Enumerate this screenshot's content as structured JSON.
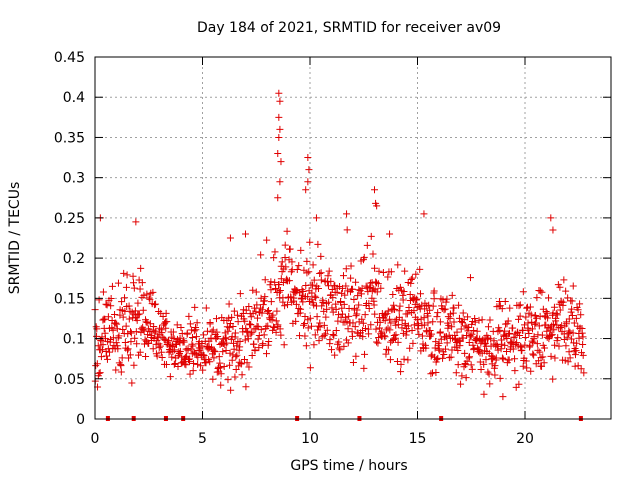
{
  "chart_data": {
    "type": "scatter",
    "title": "Day 184 of 2021, SRMTID for receiver av09",
    "xlabel": "GPS time / hours",
    "ylabel": "SRMTID / TECUs",
    "xlim": [
      0,
      24
    ],
    "ylim": [
      0,
      0.45
    ],
    "x_ticks": [
      0,
      5,
      10,
      15,
      20
    ],
    "x_tick_labels": [
      "0",
      "5",
      "10",
      "15",
      "20"
    ],
    "y_ticks": [
      0,
      0.05,
      0.1,
      0.15,
      0.2,
      0.25,
      0.3,
      0.35,
      0.4,
      0.45
    ],
    "y_tick_labels": [
      "0",
      "0.05",
      "0.1",
      "0.15",
      "0.2",
      "0.25",
      "0.3",
      "0.35",
      "0.4",
      "0.45"
    ],
    "grid": true,
    "marker": "+",
    "color": "#e00000",
    "zero_markers_x": [
      0.6,
      1.8,
      3.3,
      4.1,
      9.4,
      12.3,
      16.1,
      22.6
    ],
    "density_profile": [
      {
        "x": 0.0,
        "mean": 0.1,
        "spread": 0.035
      },
      {
        "x": 1.0,
        "mean": 0.115,
        "spread": 0.04
      },
      {
        "x": 2.5,
        "mean": 0.12,
        "spread": 0.04
      },
      {
        "x": 3.5,
        "mean": 0.085,
        "spread": 0.025
      },
      {
        "x": 5.0,
        "mean": 0.085,
        "spread": 0.025
      },
      {
        "x": 6.5,
        "mean": 0.095,
        "spread": 0.035
      },
      {
        "x": 8.0,
        "mean": 0.13,
        "spread": 0.04
      },
      {
        "x": 9.0,
        "mean": 0.17,
        "spread": 0.045
      },
      {
        "x": 10.0,
        "mean": 0.145,
        "spread": 0.045
      },
      {
        "x": 11.5,
        "mean": 0.13,
        "spread": 0.04
      },
      {
        "x": 13.0,
        "mean": 0.14,
        "spread": 0.045
      },
      {
        "x": 15.0,
        "mean": 0.12,
        "spread": 0.04
      },
      {
        "x": 17.0,
        "mean": 0.095,
        "spread": 0.03
      },
      {
        "x": 18.5,
        "mean": 0.085,
        "spread": 0.03
      },
      {
        "x": 20.0,
        "mean": 0.1,
        "spread": 0.035
      },
      {
        "x": 21.5,
        "mean": 0.12,
        "spread": 0.04
      },
      {
        "x": 22.7,
        "mean": 0.11,
        "spread": 0.035
      }
    ],
    "highlights": [
      {
        "x": 8.55,
        "y": 0.405
      },
      {
        "x": 8.6,
        "y": 0.395
      },
      {
        "x": 8.55,
        "y": 0.375
      },
      {
        "x": 8.6,
        "y": 0.36
      },
      {
        "x": 8.55,
        "y": 0.35
      },
      {
        "x": 8.5,
        "y": 0.33
      },
      {
        "x": 8.65,
        "y": 0.32
      },
      {
        "x": 8.6,
        "y": 0.295
      },
      {
        "x": 8.5,
        "y": 0.275
      },
      {
        "x": 9.9,
        "y": 0.325
      },
      {
        "x": 9.95,
        "y": 0.31
      },
      {
        "x": 9.9,
        "y": 0.295
      },
      {
        "x": 9.8,
        "y": 0.285
      },
      {
        "x": 13.0,
        "y": 0.285
      },
      {
        "x": 13.1,
        "y": 0.265
      },
      {
        "x": 13.05,
        "y": 0.268
      },
      {
        "x": 0.25,
        "y": 0.25
      },
      {
        "x": 1.9,
        "y": 0.245
      },
      {
        "x": 10.3,
        "y": 0.25
      },
      {
        "x": 11.7,
        "y": 0.255
      },
      {
        "x": 15.3,
        "y": 0.255
      },
      {
        "x": 21.2,
        "y": 0.25
      },
      {
        "x": 21.3,
        "y": 0.235
      },
      {
        "x": 7.0,
        "y": 0.23
      },
      {
        "x": 13.7,
        "y": 0.23
      },
      {
        "x": 6.3,
        "y": 0.225
      }
    ]
  }
}
